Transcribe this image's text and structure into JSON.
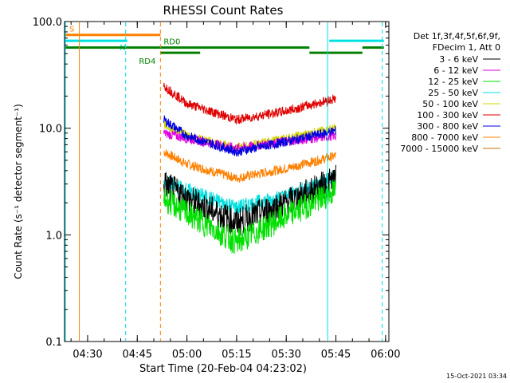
{
  "chart_data": {
    "type": "line",
    "title": "RHESSI Count Rates",
    "xlabel": "Start Time (20-Feb-04 04:23:02)",
    "ylabel": "Count Rate (s⁻¹ detector segment⁻¹)",
    "yscale": "log",
    "ylim": [
      0.1,
      100.0
    ],
    "xlim": [
      "04:23:02",
      "06:01:00"
    ],
    "x_ticks": [
      "04:30",
      "04:45",
      "05:00",
      "05:15",
      "05:30",
      "05:45",
      "06:00"
    ],
    "y_ticks": [
      "0.1",
      "1.0",
      "10.0",
      "100.0"
    ],
    "grid": false,
    "legend_position": "right",
    "legend_header": [
      "Det 1f,3f,4f,5f,6f,9f,",
      "FDecim 1, Att 0"
    ],
    "timestamp": "15-Oct-2021 03:34",
    "series": [
      {
        "name": "3 - 6 keV",
        "color": "#000000",
        "x": [
          "04:53:00",
          "05:00",
          "05:15",
          "05:30",
          "05:45"
        ],
        "values": [
          3.0,
          2.2,
          1.3,
          2.0,
          3.3
        ]
      },
      {
        "name": "6 - 12 keV",
        "color": "#e000e0",
        "x": [
          "04:53:00",
          "05:00",
          "05:15",
          "05:30",
          "05:45"
        ],
        "values": [
          9.0,
          8.0,
          6.5,
          7.5,
          8.5
        ]
      },
      {
        "name": "12 - 25 keV",
        "color": "#00e000",
        "x": [
          "04:53:00",
          "05:00",
          "05:15",
          "05:30",
          "05:45"
        ],
        "values": [
          2.2,
          1.6,
          0.85,
          1.5,
          2.6
        ]
      },
      {
        "name": "25 - 50 keV",
        "color": "#00e0e0",
        "x": [
          "04:53:00",
          "05:00",
          "05:15",
          "05:30",
          "05:45"
        ],
        "values": [
          3.2,
          2.6,
          1.8,
          2.3,
          3.5
        ]
      },
      {
        "name": "50 - 100 keV",
        "color": "#d4d400",
        "x": [
          "04:53:00",
          "05:00",
          "05:15",
          "05:30",
          "05:45"
        ],
        "values": [
          11.0,
          8.5,
          6.5,
          8.0,
          10.0
        ]
      },
      {
        "name": "100 - 300 keV",
        "color": "#e00000",
        "x": [
          "04:53:00",
          "05:00",
          "05:15",
          "05:30",
          "05:45"
        ],
        "values": [
          25.0,
          17.0,
          12.0,
          14.5,
          19.0
        ]
      },
      {
        "name": "300 - 800 keV",
        "color": "#0000e0",
        "x": [
          "04:53:00",
          "05:00",
          "05:15",
          "05:30",
          "05:45"
        ],
        "values": [
          12.0,
          8.5,
          6.0,
          7.5,
          9.5
        ]
      },
      {
        "name": "800 - 7000 keV",
        "color": "#ff8000",
        "x": [
          "04:53:00",
          "05:00",
          "05:15",
          "05:30",
          "05:45"
        ],
        "values": [
          6.0,
          4.6,
          3.4,
          4.2,
          5.5
        ]
      },
      {
        "name": "7000 - 15000 keV",
        "color": "#c07000",
        "x": [],
        "values": []
      }
    ],
    "flags": [
      {
        "label": "S",
        "color": "#ff8000",
        "segments": [
          [
            "04:23:02",
            "04:52:00"
          ]
        ],
        "level": 75.0
      },
      {
        "label": "N",
        "color": "#00e0e0",
        "segments": [
          [
            "04:23:02",
            "04:42:00"
          ],
          [
            "05:43:00",
            "05:59:30"
          ]
        ],
        "level": 66.0
      },
      {
        "label": "RD0",
        "color": "#008000",
        "segments": [
          [
            "04:23:02",
            "05:37:00"
          ],
          [
            "05:53:00",
            "05:59:30"
          ]
        ],
        "level": 57.0
      },
      {
        "label": "RD4",
        "color": "#008000",
        "segments": [
          [
            "04:52:00",
            "05:04:00"
          ],
          [
            "05:37:00",
            "05:53:00"
          ]
        ],
        "level": 51.0
      }
    ],
    "vlines": [
      {
        "time": "04:27:30",
        "color": "#ff8000",
        "dash": false
      },
      {
        "time": "04:41:30",
        "color": "#00e0e0",
        "dash": true
      },
      {
        "time": "04:52:00",
        "color": "#ff8000",
        "dash": true
      },
      {
        "time": "05:42:30",
        "color": "#00e0e0",
        "dash": false
      },
      {
        "time": "05:59:00",
        "color": "#00e0e0",
        "dash": true
      }
    ]
  }
}
